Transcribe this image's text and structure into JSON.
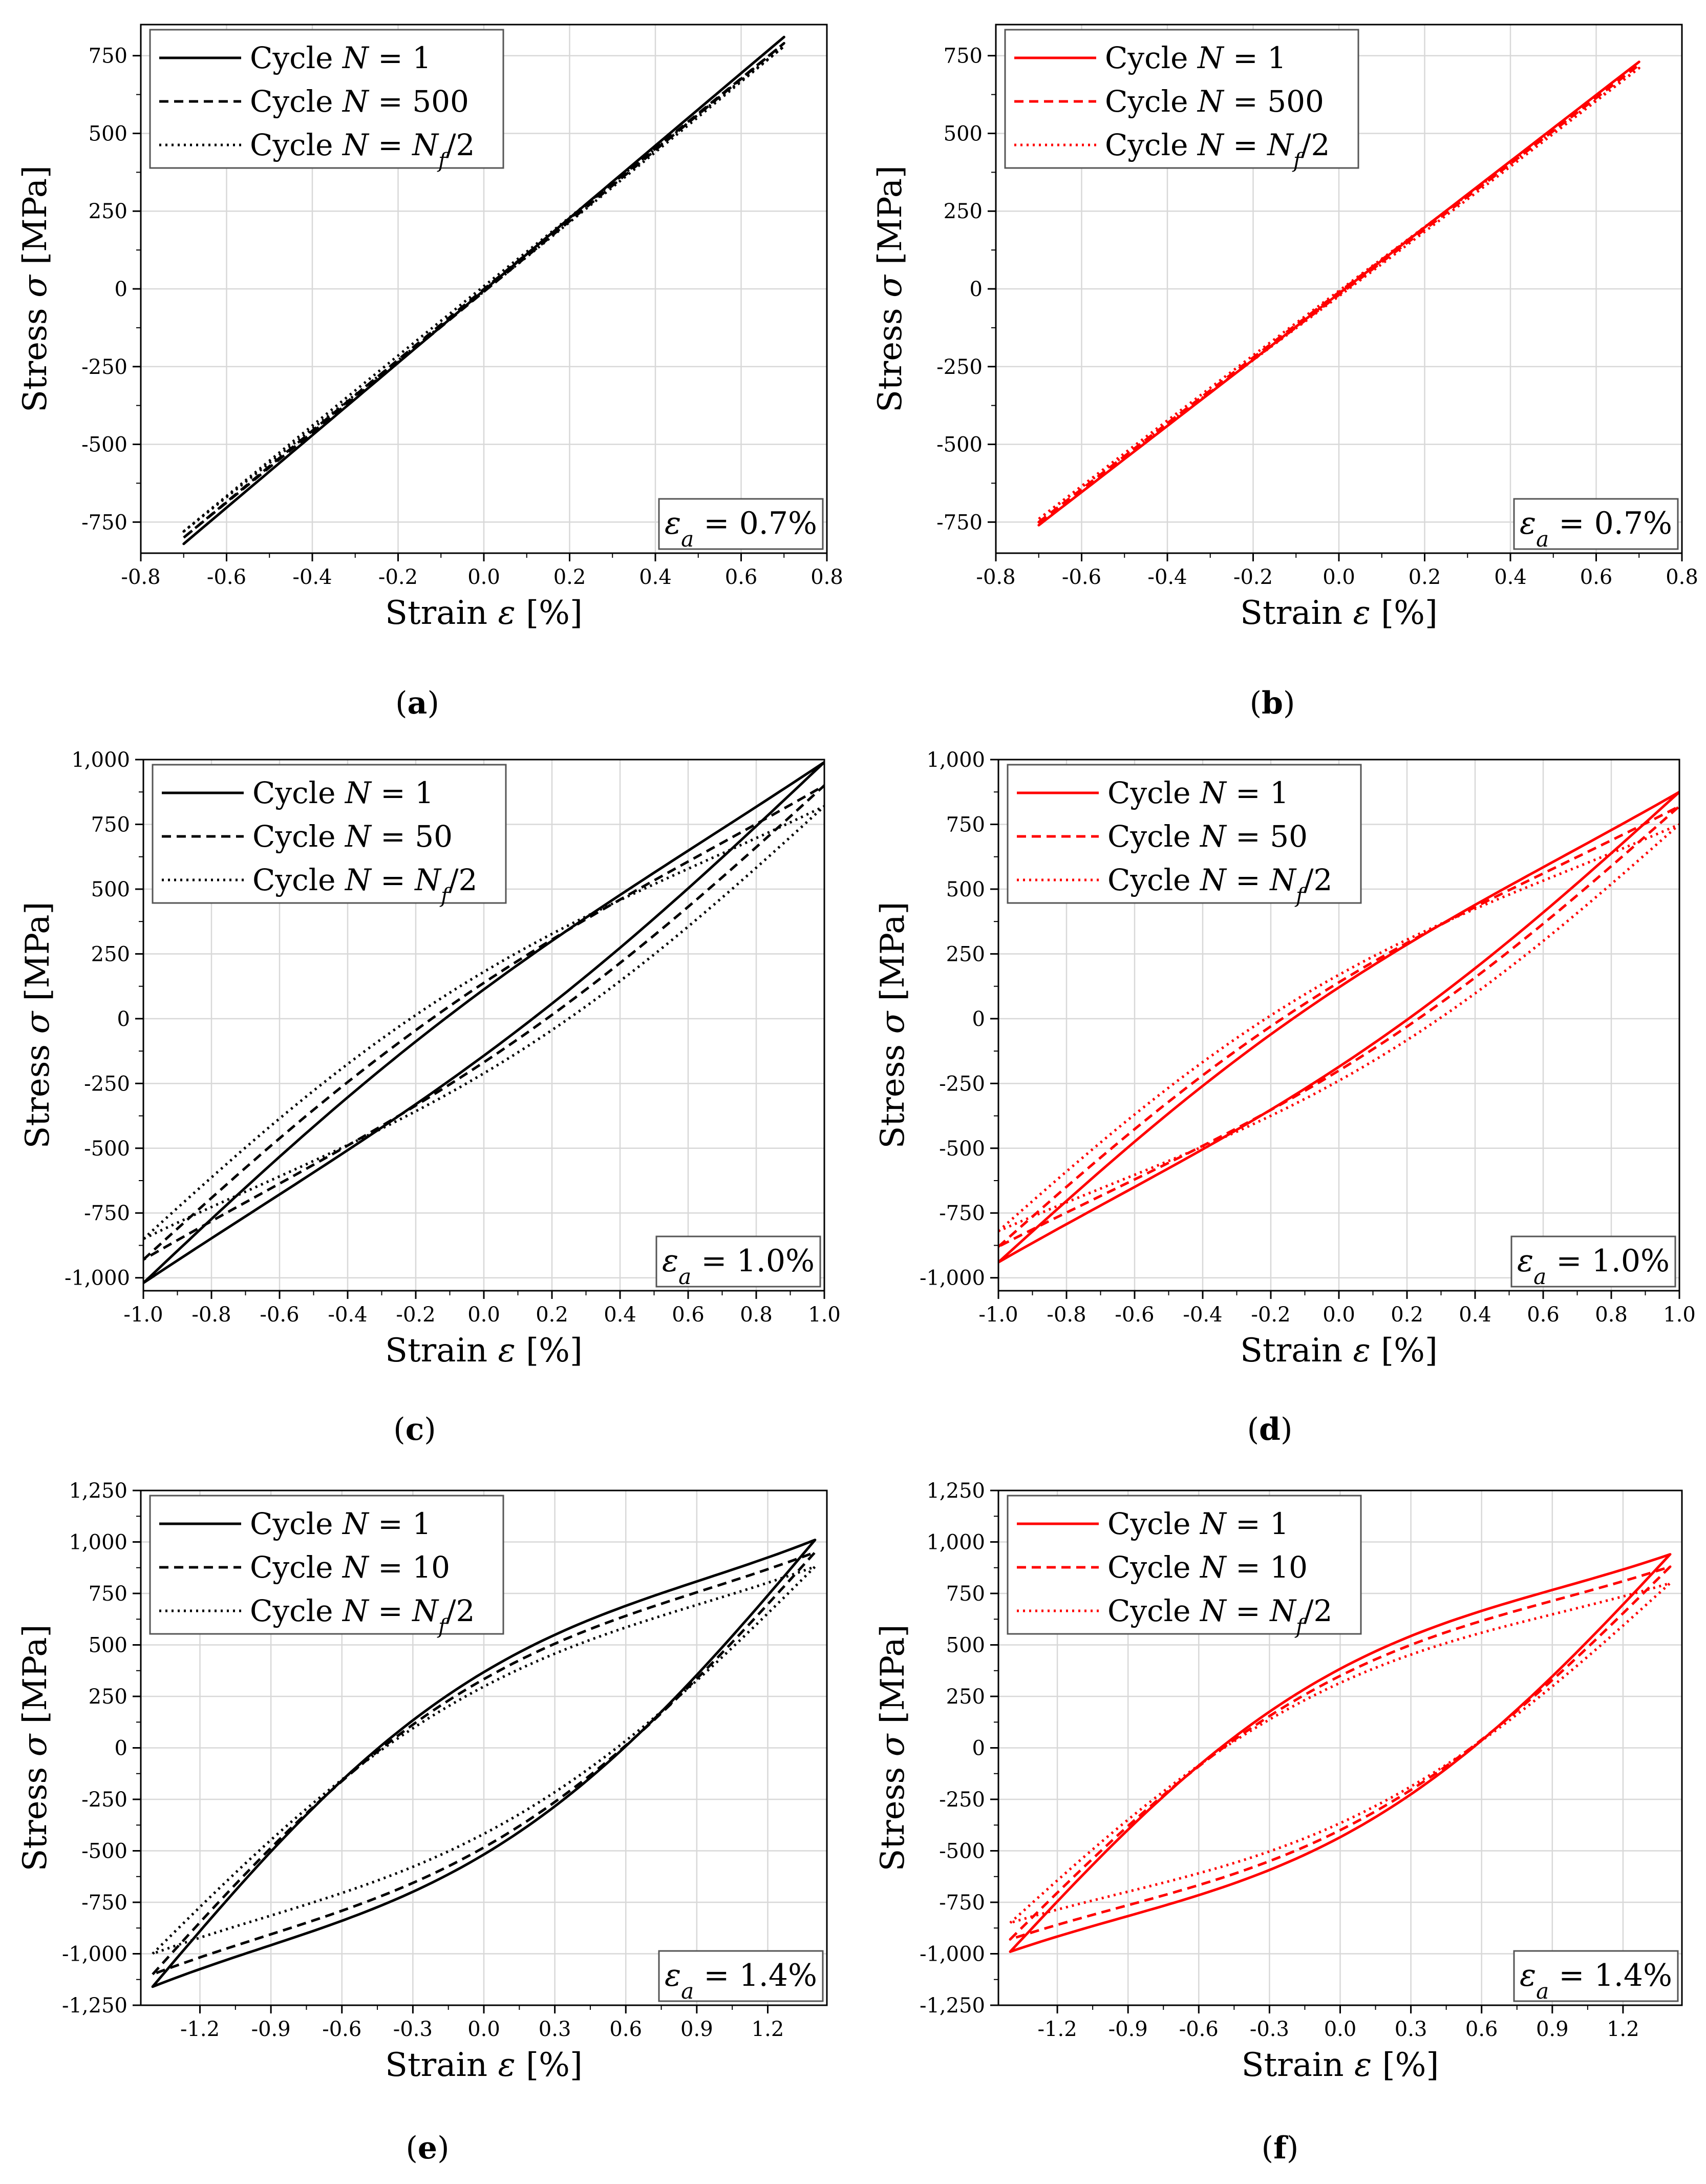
{
  "chart_data": [
    {
      "panel": "(a)",
      "caption_letter": "a",
      "type": "line",
      "color": "#000000",
      "amplitude_label": "εa = 0.7%",
      "amplitude": 0.7,
      "sigma_max": [
        810,
        790,
        780
      ],
      "sigma_min": [
        -820,
        -800,
        -780
      ],
      "hysteresis": [
        0,
        5,
        10
      ],
      "xlabel": "Strain ε [%]",
      "ylabel": "Stress σ [MPa]",
      "xlim": [
        -0.8,
        0.8
      ],
      "ylim": [
        -850,
        850
      ],
      "xticks": [
        -0.8,
        -0.6,
        -0.4,
        -0.2,
        0.0,
        0.2,
        0.4,
        0.6,
        0.8
      ],
      "xtick_labels": [
        "-0.8",
        "-0.6",
        "-0.4",
        "-0.2",
        "0.0",
        "0.2",
        "0.4",
        "0.6",
        "0.8"
      ],
      "yticks": [
        -750,
        -500,
        -250,
        0,
        250,
        500,
        750
      ],
      "ytick_labels": [
        "-750",
        "-500",
        "-250",
        "0",
        "250",
        "500",
        "750"
      ],
      "series": [
        {
          "name": "Cycle N = 1",
          "style": "solid"
        },
        {
          "name": "Cycle N = 500",
          "style": "dashed"
        },
        {
          "name": "Cycle N = Nf/2",
          "style": "dotted"
        }
      ]
    },
    {
      "panel": "(b)",
      "caption_letter": "b",
      "type": "line",
      "color": "#ff0000",
      "amplitude_label": "εa = 0.7%",
      "amplitude": 0.7,
      "sigma_max": [
        730,
        720,
        710
      ],
      "sigma_min": [
        -760,
        -750,
        -740
      ],
      "hysteresis": [
        0,
        5,
        10
      ],
      "xlabel": "Strain ε [%]",
      "ylabel": "Stress σ [MPa]",
      "xlim": [
        -0.8,
        0.8
      ],
      "ylim": [
        -850,
        850
      ],
      "xticks": [
        -0.8,
        -0.6,
        -0.4,
        -0.2,
        0.0,
        0.2,
        0.4,
        0.6,
        0.8
      ],
      "xtick_labels": [
        "-0.8",
        "-0.6",
        "-0.4",
        "-0.2",
        "0.0",
        "0.2",
        "0.4",
        "0.6",
        "0.8"
      ],
      "yticks": [
        -750,
        -500,
        -250,
        0,
        250,
        500,
        750
      ],
      "ytick_labels": [
        "-750",
        "-500",
        "-250",
        "0",
        "250",
        "500",
        "750"
      ],
      "series": [
        {
          "name": "Cycle N = 1",
          "style": "solid"
        },
        {
          "name": "Cycle N = 500",
          "style": "dashed"
        },
        {
          "name": "Cycle N = Nf/2",
          "style": "dotted"
        }
      ]
    },
    {
      "panel": "(c)",
      "caption_letter": "c",
      "type": "line",
      "color": "#000000",
      "amplitude_label": "εa = 1.0%",
      "amplitude": 1.0,
      "sigma_max": [
        990,
        900,
        820
      ],
      "sigma_min": [
        -1020,
        -930,
        -850
      ],
      "hysteresis": [
        150,
        180,
        230
      ],
      "xlabel": "Strain ε [%]",
      "ylabel": "Stress σ [MPa]",
      "xlim": [
        -1.0,
        1.0
      ],
      "ylim": [
        -1050,
        1000
      ],
      "xticks": [
        -1.0,
        -0.8,
        -0.6,
        -0.4,
        -0.2,
        0.0,
        0.2,
        0.4,
        0.6,
        0.8,
        1.0
      ],
      "xtick_labels": [
        "-1.0",
        "-0.8",
        "-0.6",
        "-0.4",
        "-0.2",
        "0.0",
        "0.2",
        "0.4",
        "0.6",
        "0.8",
        "1.0"
      ],
      "yticks": [
        -1000,
        -750,
        -500,
        -250,
        0,
        250,
        500,
        750,
        1000
      ],
      "ytick_labels": [
        "-1,000",
        "-750",
        "-500",
        "-250",
        "0",
        "250",
        "500",
        "750",
        "1,000"
      ],
      "series": [
        {
          "name": "Cycle N = 1",
          "style": "solid"
        },
        {
          "name": "Cycle N = 50",
          "style": "dashed"
        },
        {
          "name": "Cycle N = Nf/2",
          "style": "dotted"
        }
      ]
    },
    {
      "panel": "(d)",
      "caption_letter": "d",
      "type": "line",
      "color": "#ff0000",
      "amplitude_label": "εa = 1.0%",
      "amplitude": 1.0,
      "sigma_max": [
        875,
        820,
        750
      ],
      "sigma_min": [
        -940,
        -880,
        -820
      ],
      "hysteresis": [
        180,
        200,
        240
      ],
      "xlabel": "Strain ε [%]",
      "ylabel": "Stress σ [MPa]",
      "xlim": [
        -1.0,
        1.0
      ],
      "ylim": [
        -1050,
        1000
      ],
      "xticks": [
        -1.0,
        -0.8,
        -0.6,
        -0.4,
        -0.2,
        0.0,
        0.2,
        0.4,
        0.6,
        0.8,
        1.0
      ],
      "xtick_labels": [
        "-1.0",
        "-0.8",
        "-0.6",
        "-0.4",
        "-0.2",
        "0.0",
        "0.2",
        "0.4",
        "0.6",
        "0.8",
        "1.0"
      ],
      "yticks": [
        -1000,
        -750,
        -500,
        -250,
        0,
        250,
        500,
        750,
        1000
      ],
      "ytick_labels": [
        "-1,000",
        "-750",
        "-500",
        "-250",
        "0",
        "250",
        "500",
        "750",
        "1,000"
      ],
      "series": [
        {
          "name": "Cycle N = 1",
          "style": "solid"
        },
        {
          "name": "Cycle N = 50",
          "style": "dashed"
        },
        {
          "name": "Cycle N = Nf/2",
          "style": "dotted"
        }
      ]
    },
    {
      "panel": "(e)",
      "caption_letter": "e",
      "type": "line",
      "color": "#000000",
      "amplitude_label": "εa = 1.4%",
      "amplitude": 1.4,
      "sigma_max": [
        1010,
        950,
        880
      ],
      "sigma_min": [
        -1160,
        -1100,
        -1000
      ],
      "hysteresis": [
        520,
        480,
        420
      ],
      "xlabel": "Strain ε [%]",
      "ylabel": "Stress σ [MPa]",
      "xlim": [
        -1.45,
        1.45
      ],
      "ylim": [
        -1250,
        1250
      ],
      "xticks": [
        -1.2,
        -0.9,
        -0.6,
        -0.3,
        0.0,
        0.3,
        0.6,
        0.9,
        1.2
      ],
      "xtick_labels": [
        "-1.2",
        "-0.9",
        "-0.6",
        "-0.3",
        "0.0",
        "0.3",
        "0.6",
        "0.9",
        "1.2"
      ],
      "yticks": [
        -1250,
        -1000,
        -750,
        -500,
        -250,
        0,
        250,
        500,
        750,
        1000,
        1250
      ],
      "ytick_labels": [
        "-1,250",
        "-1,000",
        "-750",
        "-500",
        "-250",
        "0",
        "250",
        "500",
        "750",
        "1,000",
        "1,250"
      ],
      "series": [
        {
          "name": "Cycle N = 1",
          "style": "solid"
        },
        {
          "name": "Cycle N = 10",
          "style": "dashed"
        },
        {
          "name": "Cycle N = Nf/2",
          "style": "dotted"
        }
      ]
    },
    {
      "panel": "(f)",
      "caption_letter": "f",
      "type": "line",
      "color": "#ff0000",
      "amplitude_label": "εa = 1.4%",
      "amplitude": 1.4,
      "sigma_max": [
        940,
        880,
        800
      ],
      "sigma_min": [
        -990,
        -930,
        -850
      ],
      "hysteresis": [
        480,
        440,
        400
      ],
      "xlabel": "Strain ε [%]",
      "ylabel": "Stress σ [MPa]",
      "xlim": [
        -1.45,
        1.45
      ],
      "ylim": [
        -1250,
        1250
      ],
      "xticks": [
        -1.2,
        -0.9,
        -0.6,
        -0.3,
        0.0,
        0.3,
        0.6,
        0.9,
        1.2
      ],
      "xtick_labels": [
        "-1.2",
        "-0.9",
        "-0.6",
        "-0.3",
        "0.0",
        "0.3",
        "0.6",
        "0.9",
        "1.2"
      ],
      "yticks": [
        -1250,
        -1000,
        -750,
        -500,
        -250,
        0,
        250,
        500,
        750,
        1000,
        1250
      ],
      "ytick_labels": [
        "-1,250",
        "-1,000",
        "-750",
        "-500",
        "-250",
        "0",
        "250",
        "500",
        "750",
        "1,000",
        "1,250"
      ],
      "series": [
        {
          "name": "Cycle N = 1",
          "style": "solid"
        },
        {
          "name": "Cycle N = 10",
          "style": "dashed"
        },
        {
          "name": "Cycle N = Nf/2",
          "style": "dotted"
        }
      ]
    }
  ]
}
